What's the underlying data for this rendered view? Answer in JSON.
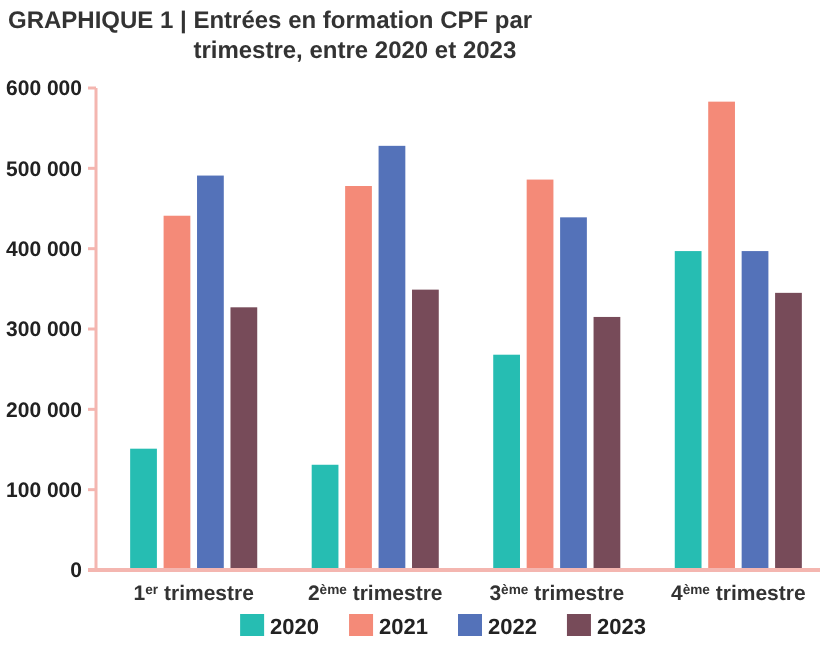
{
  "chart_data": {
    "type": "bar",
    "title": "GRAPHIQUE 1 | Entrées en formation CPF par trimestre, entre 2020 et 2023",
    "categories": [
      "1$^{er}$ trimestre",
      "2$^{ème}$ trimestre",
      "3$^{ème}$ trimestre",
      "4$^{ème}$ trimestre"
    ],
    "series": [
      {
        "name": "2020",
        "color": "#26bdb2",
        "values": [
          151000,
          131000,
          268000,
          397000
        ]
      },
      {
        "name": "2021",
        "color": "#f48a78",
        "values": [
          441000,
          478000,
          486000,
          583000
        ]
      },
      {
        "name": "2022",
        "color": "#5472b9",
        "values": [
          491000,
          528000,
          439000,
          397000
        ]
      },
      {
        "name": "2023",
        "color": "#774b59",
        "values": [
          327000,
          349000,
          315000,
          345000
        ]
      }
    ],
    "ylim": [
      0,
      600000
    ],
    "yticks": [
      {
        "value": 0,
        "label": "0"
      },
      {
        "value": 100000,
        "label": "100 000"
      },
      {
        "value": 200000,
        "label": "200 000"
      },
      {
        "value": 300000,
        "label": "300 000"
      },
      {
        "value": 400000,
        "label": "400 000"
      },
      {
        "value": 500000,
        "label": "500 000"
      },
      {
        "value": 600000,
        "label": "600 000"
      }
    ],
    "grid": false,
    "legend": "bottom"
  }
}
